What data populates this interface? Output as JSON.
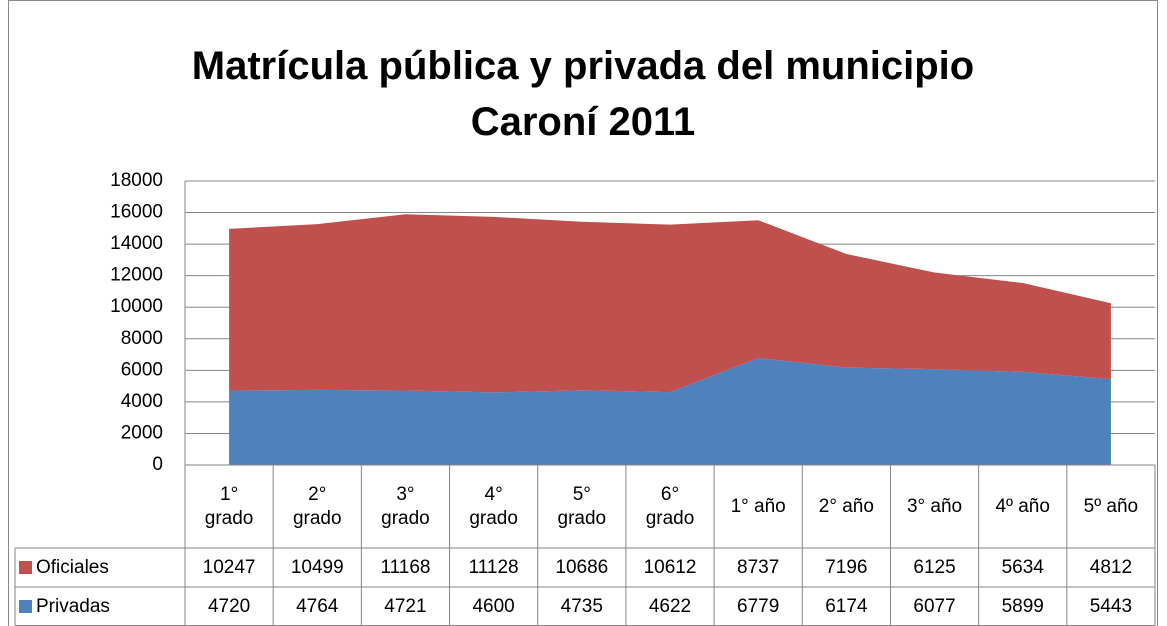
{
  "chart_data": {
    "type": "stacked_area",
    "title": "Matrícula pública y privada del municipio Caroní 2011",
    "categories": [
      "1°\ngrado",
      "2°\ngrado",
      "3°\ngrado",
      "4°\ngrado",
      "5°\ngrado",
      "6°\ngrado",
      "1° año",
      "2° año",
      "3° año",
      "4º año",
      "5º año"
    ],
    "series": [
      {
        "name": "Oficiales",
        "color": "#c0504d",
        "values": [
          10247,
          10499,
          11168,
          11128,
          10686,
          10612,
          8737,
          7196,
          6125,
          5634,
          4812
        ]
      },
      {
        "name": "Privadas",
        "color": "#4f81bd",
        "values": [
          4720,
          4764,
          4721,
          4600,
          4735,
          4622,
          6779,
          6174,
          6077,
          5899,
          5443
        ]
      }
    ],
    "ylim": [
      0,
      18000
    ],
    "yticks": [
      0,
      2000,
      4000,
      6000,
      8000,
      10000,
      12000,
      14000,
      16000,
      18000
    ],
    "grid": true
  }
}
